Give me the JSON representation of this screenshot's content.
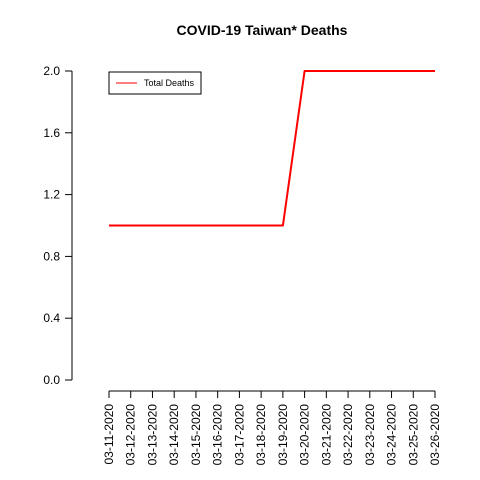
{
  "chart_data": {
    "type": "line",
    "title": "COVID-19 Taiwan* Deaths",
    "xlabel": "",
    "ylabel": "",
    "x": [
      "03-11-2020",
      "03-12-2020",
      "03-13-2020",
      "03-14-2020",
      "03-15-2020",
      "03-16-2020",
      "03-17-2020",
      "03-18-2020",
      "03-19-2020",
      "03-20-2020",
      "03-21-2020",
      "03-22-2020",
      "03-23-2020",
      "03-24-2020",
      "03-25-2020",
      "03-26-2020"
    ],
    "series": [
      {
        "name": "Total Deaths",
        "color": "#ff0000",
        "values": [
          1,
          1,
          1,
          1,
          1,
          1,
          1,
          1,
          1,
          2,
          2,
          2,
          2,
          2,
          2,
          2
        ]
      }
    ],
    "ylim": [
      0,
      2
    ],
    "yticks": [
      "0.0",
      "0.4",
      "0.8",
      "1.2",
      "1.6",
      "2.0"
    ],
    "grid": false,
    "legend_position": "top-left"
  }
}
